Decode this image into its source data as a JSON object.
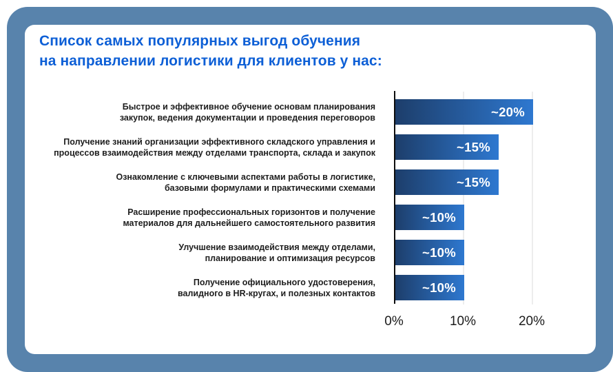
{
  "colors": {
    "frame_blue": "#5883ac",
    "card_background": "#ffffff",
    "title_blue": "#0d5fd6",
    "bar_gradient_start": "#1d3e6b",
    "bar_gradient_end": "#2e78d0",
    "axis_black": "#0d0d0d",
    "gridline_gray": "#ededed"
  },
  "title_lines": [
    "Список самых популярных выгод обучения",
    "на направлении логистики для клиентов у нас:"
  ],
  "chart_data": {
    "type": "bar",
    "orientation": "horizontal",
    "title": "Список самых популярных выгод обучения на направлении логистики для клиентов у нас:",
    "categories": [
      [
        "Быстрое и эффективное обучение основам планирования",
        "закупок, ведения документации и проведения переговоров"
      ],
      [
        "Получение знаний организации эффективного складского управления и",
        "процессов взаимодействия между отделами транспорта, склада и закупок"
      ],
      [
        "Ознакомление с ключевыми аспектами работы в логистике,",
        "базовыми формулами и практическими схемами"
      ],
      [
        "Расширение профессиональных горизонтов и получение",
        "материалов для дальнейшего самостоятельного развития"
      ],
      [
        "Улучшение взаимодействия между отделами,",
        "планирование и оптимизация ресурсов"
      ],
      [
        "Получение официального удостоверения,",
        "валидного в HR-кругах, и полезных контактов"
      ]
    ],
    "values": [
      20,
      15,
      15,
      10,
      10,
      10
    ],
    "value_labels": [
      "~20%",
      "~15%",
      "~15%",
      "~10%",
      "~10%",
      "~10%"
    ],
    "x_ticks": [
      {
        "label": "0%",
        "value": 0
      },
      {
        "label": "10%",
        "value": 10
      },
      {
        "label": "20%",
        "value": 20
      }
    ],
    "xlim": [
      0,
      24
    ],
    "xlabel": "",
    "ylabel": "",
    "grid": "vertical-light",
    "legend": "none"
  }
}
